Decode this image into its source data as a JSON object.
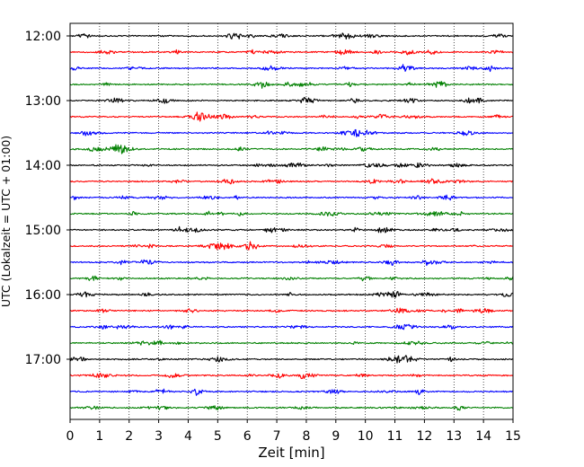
{
  "chart_data": {
    "type": "line",
    "title": "",
    "xlabel": "Zeit  [min]",
    "ylabel": "UTC (Lokalzeit = UTC + 01:00)",
    "xlim": [
      0,
      15
    ],
    "xticks": [
      0,
      1,
      2,
      3,
      4,
      5,
      6,
      7,
      8,
      9,
      10,
      11,
      12,
      13,
      14,
      15
    ],
    "xtick_labels": [
      "0",
      "1",
      "2",
      "3",
      "4",
      "5",
      "6",
      "7",
      "8",
      "9",
      "10",
      "11",
      "12",
      "13",
      "14",
      "15"
    ],
    "ytick_labels": [
      "12:00",
      "13:00",
      "14:00",
      "15:00",
      "16:00",
      "17:00"
    ],
    "vertical_grid": "dotted",
    "trace_start": "12:00",
    "trace_interval_min": 15,
    "trace_colors": [
      "#000000",
      "#ff0000",
      "#0000ff",
      "#008000"
    ],
    "series": [
      {
        "start": "12:00",
        "color": "#000000"
      },
      {
        "start": "12:15",
        "color": "#ff0000"
      },
      {
        "start": "12:30",
        "color": "#0000ff"
      },
      {
        "start": "12:45",
        "color": "#008000"
      },
      {
        "start": "13:00",
        "color": "#000000"
      },
      {
        "start": "13:15",
        "color": "#ff0000"
      },
      {
        "start": "13:30",
        "color": "#0000ff"
      },
      {
        "start": "13:45",
        "color": "#008000"
      },
      {
        "start": "14:00",
        "color": "#000000"
      },
      {
        "start": "14:15",
        "color": "#ff0000"
      },
      {
        "start": "14:30",
        "color": "#0000ff"
      },
      {
        "start": "14:45",
        "color": "#008000"
      },
      {
        "start": "15:00",
        "color": "#000000"
      },
      {
        "start": "15:15",
        "color": "#ff0000"
      },
      {
        "start": "15:30",
        "color": "#0000ff"
      },
      {
        "start": "15:45",
        "color": "#008000"
      },
      {
        "start": "16:00",
        "color": "#000000"
      },
      {
        "start": "16:15",
        "color": "#ff0000"
      },
      {
        "start": "16:30",
        "color": "#0000ff"
      },
      {
        "start": "16:45",
        "color": "#008000"
      },
      {
        "start": "17:00",
        "color": "#000000"
      },
      {
        "start": "17:15",
        "color": "#ff0000"
      },
      {
        "start": "17:30",
        "color": "#0000ff"
      },
      {
        "start": "17:45",
        "color": "#008000"
      }
    ]
  }
}
